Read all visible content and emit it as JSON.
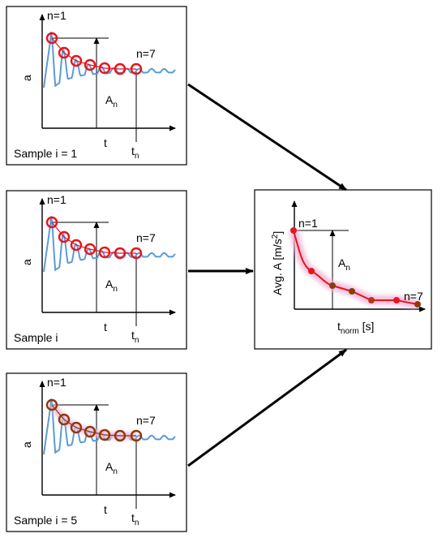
{
  "colors": {
    "wave": "#5b9bd5",
    "marker_red": "#e8141e",
    "marker_dark": "#8b3a0e",
    "curve": "#e8141e",
    "glow": "#f2b8d8",
    "axis": "#000000"
  },
  "panels": [
    {
      "id": "sample-1",
      "sample_label": "Sample i = 1",
      "y_label": "a",
      "n_first": "n=1",
      "n_last": "n=7",
      "amp_label": "A",
      "amp_sub": "n",
      "x_label": "t",
      "tn_label": "t",
      "tn_sub": "n",
      "marker_style": "red"
    },
    {
      "id": "sample-i",
      "sample_label": "Sample i",
      "y_label": "a",
      "n_first": "n=1",
      "n_last": "n=7",
      "amp_label": "A",
      "amp_sub": "n",
      "x_label": "t",
      "tn_label": "t",
      "tn_sub": "n",
      "marker_style": "red"
    },
    {
      "id": "sample-5",
      "sample_label": "Sample i = 5",
      "y_label": "a",
      "n_first": "n=1",
      "n_last": "n=7",
      "amp_label": "A",
      "amp_sub": "n",
      "x_label": "t",
      "tn_label": "t",
      "tn_sub": "n",
      "marker_style": "dark"
    }
  ],
  "result": {
    "y_label": "Avg. A [m/s",
    "y_label_sup": "2",
    "y_label_end": "]",
    "x_label": "t",
    "x_label_sub": "norm",
    "x_label_end": " [s]",
    "n_first": "n=1",
    "n_last": "n=7",
    "amp_label": "A",
    "amp_sub": "n"
  }
}
